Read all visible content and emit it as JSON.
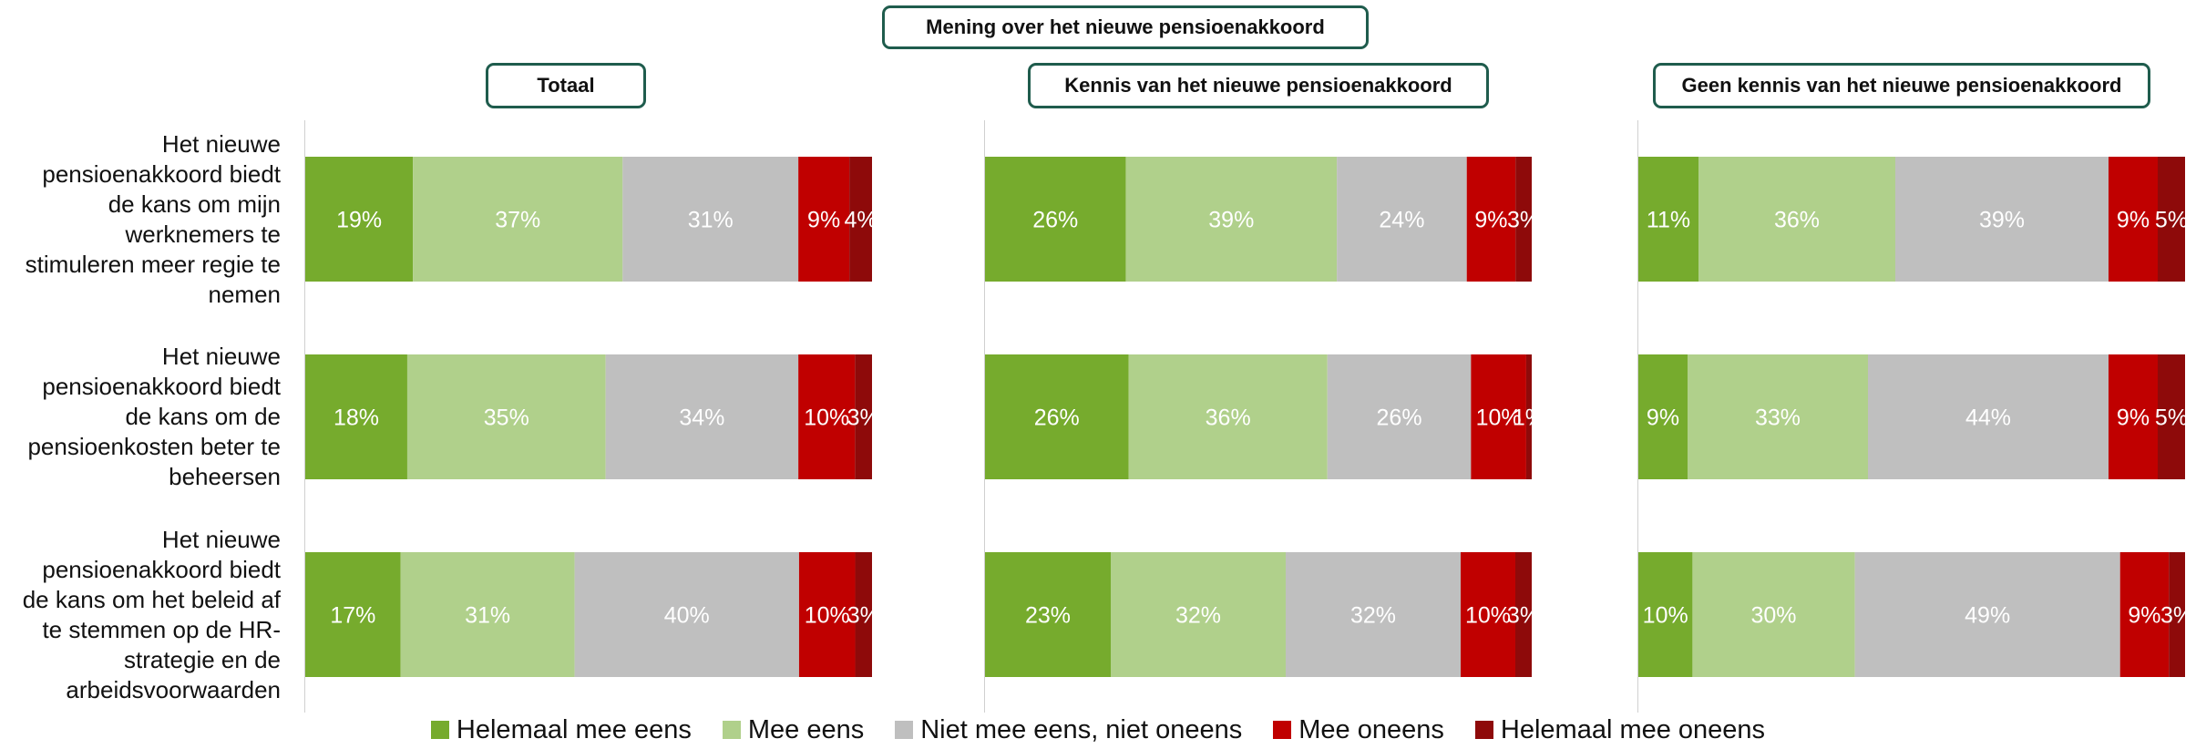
{
  "main_title": "Mening over het nieuwe pensioenakkoord",
  "chart_data": {
    "type": "bar",
    "orientation": "horizontal",
    "stacked": "100%",
    "title": "Mening over het nieuwe pensioenakkoord",
    "categories": [
      "Het nieuwe pensioenakkoord biedt de kans om mijn werknemers te stimuleren meer regie te nemen",
      "Het nieuwe pensioenakkoord biedt de kans om de pensioenkosten beter te beheersen",
      "Het nieuwe pensioenakkoord biedt de kans om het beleid af te stemmen op de HR-strategie en de arbeidsvoorwaarden"
    ],
    "category_lines": [
      [
        "Het nieuwe",
        "pensioenakkoord biedt",
        "de kans om mijn",
        "werknemers te",
        "stimuleren meer regie te",
        "nemen"
      ],
      [
        "Het nieuwe",
        "pensioenakkoord biedt",
        "de kans om de",
        "pensioenkosten beter te",
        "beheersen"
      ],
      [
        "Het nieuwe",
        "pensioenakkoord biedt",
        "de kans om het beleid af",
        "te stemmen op de HR-",
        "strategie en de",
        "arbeidsvoorwaarden"
      ]
    ],
    "series_names": [
      "Helemaal mee eens",
      "Mee eens",
      "Niet mee eens, niet oneens",
      "Mee oneens",
      "Helemaal mee oneens"
    ],
    "colors": [
      "#76ab2d",
      "#b0d08b",
      "#bfbfbf",
      "#c00000",
      "#8e0a0a"
    ],
    "panels": [
      {
        "title": "Totaal",
        "values": [
          [
            19,
            37,
            31,
            9,
            4
          ],
          [
            18,
            35,
            34,
            10,
            3
          ],
          [
            17,
            31,
            40,
            10,
            3
          ]
        ],
        "labels": [
          [
            "19%",
            "37%",
            "31%",
            "9%",
            "4%"
          ],
          [
            "18%",
            "35%",
            "34%",
            "10%",
            "3%"
          ],
          [
            "17%",
            "31%",
            "40%",
            "10%",
            "3%"
          ]
        ]
      },
      {
        "title": "Kennis van het nieuwe pensioenakkoord",
        "values": [
          [
            26,
            39,
            24,
            9,
            3
          ],
          [
            26,
            36,
            26,
            10,
            1
          ],
          [
            23,
            32,
            32,
            10,
            3
          ]
        ],
        "labels": [
          [
            "26%",
            "39%",
            "24%",
            "9%",
            "3%"
          ],
          [
            "26%",
            "36%",
            "26%",
            "10%",
            "1%"
          ],
          [
            "23%",
            "32%",
            "32%",
            "10%",
            "3%"
          ]
        ]
      },
      {
        "title": "Geen kennis van het nieuwe pensioenakkoord",
        "values": [
          [
            11,
            36,
            39,
            9,
            5
          ],
          [
            9,
            33,
            44,
            9,
            5
          ],
          [
            10,
            30,
            49,
            9,
            3
          ]
        ],
        "labels": [
          [
            "11%",
            "36%",
            "39%",
            "9%",
            "5%"
          ],
          [
            "9%",
            "33%",
            "44%",
            "9%",
            "5%"
          ],
          [
            "10%",
            "30%",
            "49%",
            "9%",
            "3%"
          ]
        ]
      }
    ],
    "legend_position": "bottom",
    "grid": false
  }
}
